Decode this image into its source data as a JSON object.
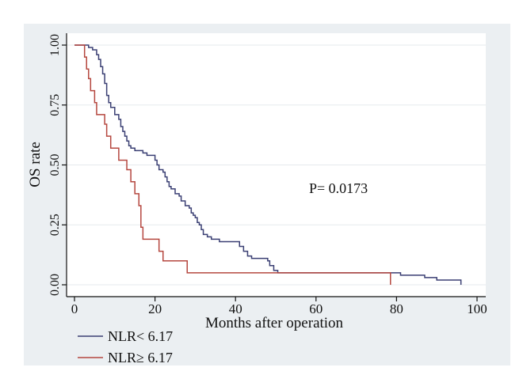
{
  "chart_data": {
    "type": "line",
    "step": true,
    "title": "",
    "xlabel": "Months after operation",
    "ylabel": "OS rate",
    "xlim": [
      0,
      100
    ],
    "ylim": [
      0,
      1
    ],
    "xticks": [
      0,
      20,
      40,
      60,
      80,
      100
    ],
    "yticks": [
      0,
      0.25,
      0.5,
      0.75,
      1
    ],
    "xtick_labels": [
      "0",
      "20",
      "40",
      "60",
      "80",
      "100"
    ],
    "ytick_labels": [
      "0.00",
      "0.25",
      "0.50",
      "0.75",
      "1.00"
    ],
    "grid": "horizontal",
    "legend_position": "bottom-left",
    "annotation": "P= 0.0173",
    "series": [
      {
        "name": "NLR< 6.17",
        "color": "#3a3f73",
        "points": [
          [
            0,
            1.0
          ],
          [
            3.5,
            1.0
          ],
          [
            3.5,
            0.99
          ],
          [
            4.5,
            0.98
          ],
          [
            5.5,
            0.96
          ],
          [
            6.0,
            0.94
          ],
          [
            6.5,
            0.91
          ],
          [
            7.0,
            0.88
          ],
          [
            7.5,
            0.84
          ],
          [
            8.0,
            0.79
          ],
          [
            8.5,
            0.76
          ],
          [
            9.0,
            0.74
          ],
          [
            10.0,
            0.71
          ],
          [
            11.0,
            0.69
          ],
          [
            11.5,
            0.66
          ],
          [
            12.0,
            0.64
          ],
          [
            12.5,
            0.62
          ],
          [
            13.0,
            0.6
          ],
          [
            13.5,
            0.58
          ],
          [
            14.0,
            0.57
          ],
          [
            15.0,
            0.56
          ],
          [
            17.0,
            0.55
          ],
          [
            18.0,
            0.54
          ],
          [
            20.0,
            0.52
          ],
          [
            20.5,
            0.5
          ],
          [
            21.0,
            0.48
          ],
          [
            22.0,
            0.47
          ],
          [
            22.5,
            0.45
          ],
          [
            23.0,
            0.43
          ],
          [
            23.5,
            0.41
          ],
          [
            24.0,
            0.4
          ],
          [
            25.0,
            0.38
          ],
          [
            26.0,
            0.37
          ],
          [
            26.5,
            0.35
          ],
          [
            27.5,
            0.33
          ],
          [
            28.5,
            0.32
          ],
          [
            29.0,
            0.3
          ],
          [
            29.5,
            0.29
          ],
          [
            30.0,
            0.28
          ],
          [
            30.5,
            0.26
          ],
          [
            31.0,
            0.25
          ],
          [
            31.5,
            0.23
          ],
          [
            32.0,
            0.21
          ],
          [
            33.0,
            0.2
          ],
          [
            34.0,
            0.19
          ],
          [
            36.0,
            0.18
          ],
          [
            41.0,
            0.16
          ],
          [
            42.0,
            0.14
          ],
          [
            43.0,
            0.12
          ],
          [
            44.0,
            0.11
          ],
          [
            48.0,
            0.1
          ],
          [
            48.5,
            0.08
          ],
          [
            49.5,
            0.06
          ],
          [
            50.5,
            0.05
          ],
          [
            81.0,
            0.04
          ],
          [
            87.0,
            0.03
          ],
          [
            90.0,
            0.02
          ],
          [
            96.0,
            0.0
          ]
        ]
      },
      {
        "name": "NLR≥ 6.17",
        "color": "#b5473f",
        "points": [
          [
            0,
            1.0
          ],
          [
            2.5,
            1.0
          ],
          [
            2.5,
            0.95
          ],
          [
            3.0,
            0.9
          ],
          [
            3.5,
            0.86
          ],
          [
            4.0,
            0.81
          ],
          [
            5.0,
            0.76
          ],
          [
            5.5,
            0.71
          ],
          [
            7.5,
            0.67
          ],
          [
            8.0,
            0.62
          ],
          [
            9.0,
            0.57
          ],
          [
            11.0,
            0.52
          ],
          [
            13.0,
            0.48
          ],
          [
            14.0,
            0.43
          ],
          [
            15.0,
            0.38
          ],
          [
            16.0,
            0.33
          ],
          [
            16.5,
            0.24
          ],
          [
            17.0,
            0.19
          ],
          [
            21.0,
            0.14
          ],
          [
            22.0,
            0.1
          ],
          [
            28.0,
            0.05
          ],
          [
            78.5,
            0.05
          ],
          [
            78.5,
            0.0
          ]
        ]
      }
    ]
  }
}
